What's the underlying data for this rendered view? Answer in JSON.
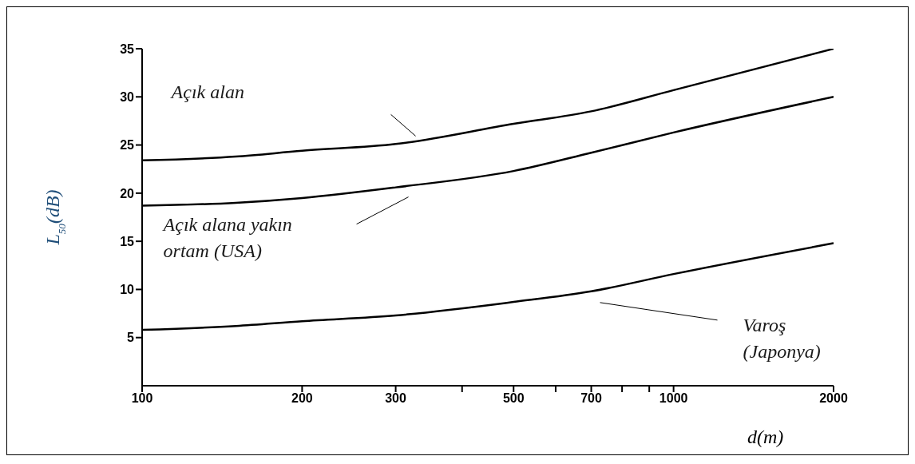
{
  "chart_data": {
    "type": "line",
    "xlabel": "d(m)",
    "ylabel": "L$_{50}$(dB)",
    "log": "x",
    "grid": false,
    "legend": false,
    "marker": "none",
    "line_style": "solid",
    "x": [
      100,
      150,
      200,
      300,
      500,
      700,
      1000,
      2000
    ],
    "xlim": [
      100,
      2000
    ],
    "xticks": [
      100,
      200,
      300,
      {
        "value": 400,
        "label": null
      },
      500,
      {
        "value": 600,
        "label": null
      },
      700,
      {
        "value": 800,
        "label": null
      },
      {
        "value": 900,
        "label": null
      },
      1000,
      2000
    ],
    "ylim": [
      0,
      35
    ],
    "yticks": [
      5,
      10,
      15,
      20,
      25,
      30,
      35
    ],
    "series": [
      {
        "name": "Açık alan",
        "color": "#000000",
        "values": [
          23.4,
          23.8,
          24.4,
          25.1,
          27.2,
          28.5,
          30.7,
          35.0
        ]
      },
      {
        "name": "Açık alana yakın ortam (USA)",
        "color": "#000000",
        "values": [
          18.7,
          19.0,
          19.5,
          20.6,
          22.3,
          24.2,
          26.3,
          30.0
        ]
      },
      {
        "name": "Varoş (Japonya)",
        "color": "#000000",
        "values": [
          5.8,
          6.2,
          6.7,
          7.3,
          8.7,
          9.8,
          11.6,
          14.8
        ]
      }
    ]
  }
}
